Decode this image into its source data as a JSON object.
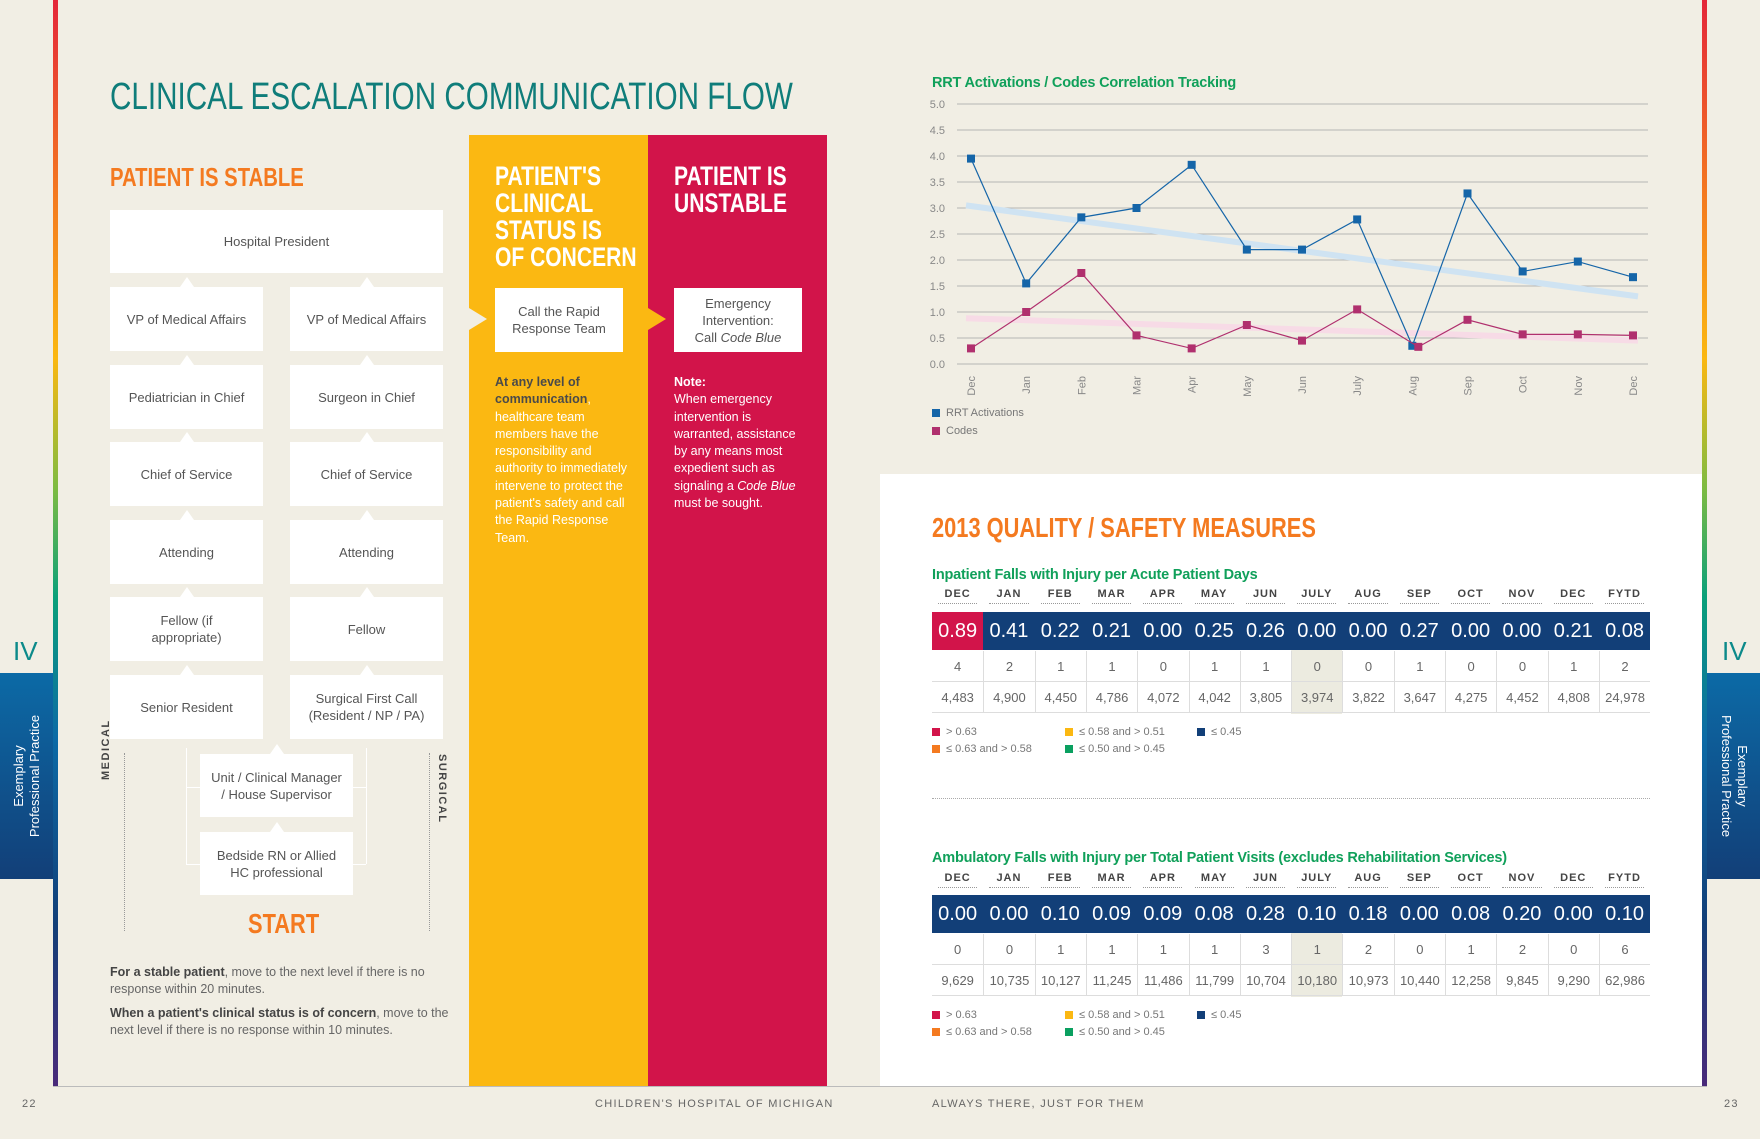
{
  "title": "CLINICAL ESCALATION COMMUNICATION FLOW",
  "section_tab": {
    "numeral": "IV",
    "label_line1": "Exemplary",
    "label_line2": "Professional Practice"
  },
  "stable": {
    "heading": "PATIENT IS STABLE",
    "top": "Hospital President",
    "medical": [
      "VP of Medical Affairs",
      "Pediatrician in Chief",
      "Chief of Service",
      "Attending",
      "Fellow (if appropriate)",
      "Senior Resident"
    ],
    "surgical": [
      "VP of Medical Affairs",
      "Surgeon in Chief",
      "Chief of Service",
      "Attending",
      "Fellow",
      "Surgical First Call (Resident / NP / PA)"
    ],
    "manager": "Unit / Clinical Manager / House Supervisor",
    "bedside": "Bedside RN or Allied HC professional",
    "medical_label": "MEDICAL",
    "surgical_label": "SURGICAL",
    "start": "START",
    "note1_bold": "For a stable patient",
    "note1_rest": ", move to the next level if there is no response within 20 minutes.",
    "note2_bold": "When a patient's clinical status is of concern",
    "note2_rest": ", move to the next level if there is no response within 10 minutes."
  },
  "concern": {
    "heading_lines": [
      "PATIENT'S",
      "CLINICAL",
      "STATUS IS",
      "OF CONCERN"
    ],
    "box": "Call the Rapid Response Team",
    "text_bold": "At any level of communication",
    "text_rest": ", healthcare team members have the responsibility and authority to immediately intervene to protect the patient's safety and call the Rapid Response Team.",
    "color": "#fbb812"
  },
  "unstable": {
    "heading_lines": [
      "PATIENT IS",
      "UNSTABLE"
    ],
    "box_line1": "Emergency Intervention:",
    "box_line2a": "Call ",
    "box_line2b": "Code Blue",
    "note_label": "Note:",
    "note_a": "When emergency intervention is warranted, assistance by any means most expedient such as signaling a ",
    "note_b": "Code Blue",
    "note_c": " must be sought.",
    "color": "#d2144a"
  },
  "chart_data": {
    "type": "line",
    "title": "RRT Activations / Codes Correlation Tracking",
    "categories": [
      "Dec",
      "Jan",
      "Feb",
      "Mar",
      "Apr",
      "May",
      "Jun",
      "July",
      "Aug",
      "Sep",
      "Oct",
      "Nov",
      "Dec"
    ],
    "ylim": [
      0,
      5
    ],
    "yticks": [
      "0.0",
      "0.5",
      "1.0",
      "1.5",
      "2.0",
      "2.5",
      "3.0",
      "3.5",
      "4.0",
      "4.5",
      "5.0"
    ],
    "grid": true,
    "legend_position": "bottom-left",
    "series": [
      {
        "name": "RRT Activations",
        "color": "#1565a8",
        "trend_color": "#cfe3f2",
        "trend": [
          3.05,
          1.3
        ],
        "values": [
          3.95,
          1.55,
          2.82,
          3.0,
          3.83,
          2.2,
          2.2,
          2.78,
          0.35,
          3.28,
          1.78,
          1.97,
          1.67
        ]
      },
      {
        "name": "Codes",
        "color": "#b0306e",
        "trend_color": "#f7dbe6",
        "trend": [
          0.88,
          0.45
        ],
        "values": [
          0.3,
          1.0,
          1.75,
          0.55,
          0.3,
          0.75,
          0.45,
          1.05,
          0.33,
          0.85,
          0.57,
          0.57,
          0.55
        ]
      }
    ]
  },
  "quality": {
    "heading": "2013 QUALITY / SAFETY MEASURES",
    "columns": [
      "DEC",
      "JAN",
      "FEB",
      "MAR",
      "APR",
      "MAY",
      "JUN",
      "JULY",
      "AUG",
      "SEP",
      "OCT",
      "NOV",
      "DEC",
      "FYTD"
    ],
    "highlight_column": "JULY",
    "tables": [
      {
        "title": "Inpatient Falls with Injury per Acute Patient Days",
        "rates": [
          "0.89",
          "0.41",
          "0.22",
          "0.21",
          "0.00",
          "0.25",
          "0.26",
          "0.00",
          "0.00",
          "0.27",
          "0.00",
          "0.00",
          "0.21",
          "0.08"
        ],
        "falls": [
          "4",
          "2",
          "1",
          "1",
          "0",
          "1",
          "1",
          "0",
          "0",
          "1",
          "0",
          "0",
          "1",
          "2"
        ],
        "days": [
          "4,483",
          "4,900",
          "4,450",
          "4,786",
          "4,072",
          "4,042",
          "3,805",
          "3,974",
          "3,822",
          "3,647",
          "4,275",
          "4,452",
          "4,808",
          "24,978"
        ]
      },
      {
        "title": "Ambulatory Falls with Injury per Total Patient Visits (excludes Rehabilitation Services)",
        "rates": [
          "0.00",
          "0.00",
          "0.10",
          "0.09",
          "0.09",
          "0.08",
          "0.28",
          "0.10",
          "0.18",
          "0.00",
          "0.08",
          "0.20",
          "0.00",
          "0.10"
        ],
        "falls": [
          "0",
          "0",
          "1",
          "1",
          "1",
          "1",
          "3",
          "1",
          "2",
          "0",
          "1",
          "2",
          "0",
          "6"
        ],
        "days": [
          "9,629",
          "10,735",
          "10,127",
          "11,245",
          "11,486",
          "11,799",
          "10,704",
          "10,180",
          "10,973",
          "10,440",
          "12,258",
          "9,845",
          "9,290",
          "62,986"
        ]
      }
    ],
    "legend": [
      {
        "label": "> 0.63",
        "color": "#d2144a"
      },
      {
        "label": "≤ 0.63 and > 0.58",
        "color": "#f47a20"
      },
      {
        "label": "≤ 0.58 and > 0.51",
        "color": "#fbb812"
      },
      {
        "label": "≤ 0.50 and > 0.45",
        "color": "#0aa060"
      },
      {
        "label": "≤ 0.45",
        "color": "#123f78"
      }
    ]
  },
  "footer": {
    "page_left": "22",
    "hospital": "CHILDREN'S HOSPITAL OF MICHIGAN",
    "tagline": "ALWAYS THERE, JUST FOR THEM",
    "page_right": "23"
  }
}
